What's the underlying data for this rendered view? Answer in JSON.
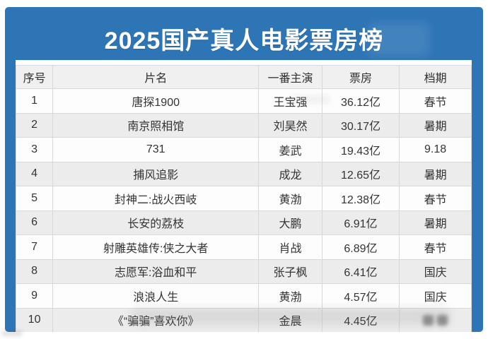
{
  "page": {
    "title": "2025国产真人电影票房榜"
  },
  "colors": {
    "banner_blue": "#2e75b6",
    "title_white": "#ffffff",
    "header_gray": "#f0f0f0",
    "row_alt_gray": "#ececec",
    "border_gray": "#d8d8d8",
    "text_dark": "#333333"
  },
  "chart_data": {
    "type": "table",
    "title": "2025国产真人电影票房榜",
    "columns": [
      {
        "key": "rank",
        "label": "序号"
      },
      {
        "key": "title",
        "label": "片名"
      },
      {
        "key": "lead",
        "label": "一番主演"
      },
      {
        "key": "boxoffice",
        "label": "票房"
      },
      {
        "key": "schedule",
        "label": "档期"
      }
    ],
    "rows": [
      {
        "rank": "1",
        "title": "唐探1900",
        "lead": "王宝强",
        "boxoffice": "36.12亿",
        "schedule": "春节"
      },
      {
        "rank": "2",
        "title": "南京照相馆",
        "lead": "刘昊然",
        "boxoffice": "30.17亿",
        "schedule": "暑期"
      },
      {
        "rank": "3",
        "title": "731",
        "lead": "姜武",
        "boxoffice": "19.43亿",
        "schedule": "9.18"
      },
      {
        "rank": "4",
        "title": "捕风追影",
        "lead": "成龙",
        "boxoffice": "12.65亿",
        "schedule": "暑期"
      },
      {
        "rank": "5",
        "title": "封神二:战火西岐",
        "lead": "黄渤",
        "boxoffice": "12.38亿",
        "schedule": "春节"
      },
      {
        "rank": "6",
        "title": "长安的荔枝",
        "lead": "大鹏",
        "boxoffice": "6.91亿",
        "schedule": "暑期"
      },
      {
        "rank": "7",
        "title": "射雕英雄传:侠之大者",
        "lead": "肖战",
        "boxoffice": "6.89亿",
        "schedule": "春节"
      },
      {
        "rank": "8",
        "title": "志愿军:浴血和平",
        "lead": "张子枫",
        "boxoffice": "6.41亿",
        "schedule": "国庆"
      },
      {
        "rank": "9",
        "title": "浪浪人生",
        "lead": "黄渤",
        "boxoffice": "4.57亿",
        "schedule": "国庆"
      },
      {
        "rank": "10",
        "title": "《“骗骗”喜欢你》",
        "lead": "金晨",
        "boxoffice": "4.45亿",
        "schedule": "",
        "schedule_blurred": true
      }
    ]
  }
}
